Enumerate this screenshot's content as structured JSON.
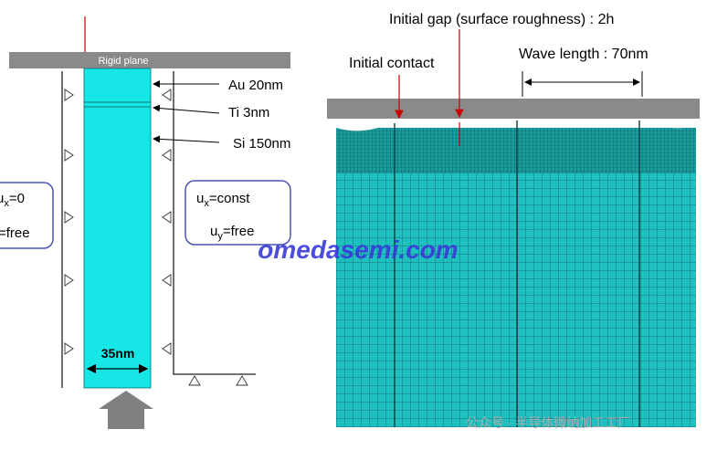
{
  "left_panel": {
    "rigid_plane": "Rigid plane",
    "layers": [
      "Au 20nm",
      "Ti 3nm",
      "Si 150nm"
    ],
    "width_label": "35nm",
    "left_bc": {
      "line1": {
        "symbol": "u",
        "subscript": "x",
        "text": "=0"
      },
      "line2": "=free"
    },
    "right_bc": [
      {
        "symbol": "u",
        "subscript": "x",
        "text": "=const"
      },
      {
        "symbol": "u",
        "subscript": "y",
        "text": "=free"
      }
    ]
  },
  "right_panel": {
    "gap_label": "Initial gap (surface roughness) : 2h",
    "contact_label": "Initial contact",
    "wavelength_label": "Wave length : 70nm"
  },
  "watermark": "omedasemi.com",
  "wechat_watermark": "公众号 · 半导体微纳加工工厂"
}
